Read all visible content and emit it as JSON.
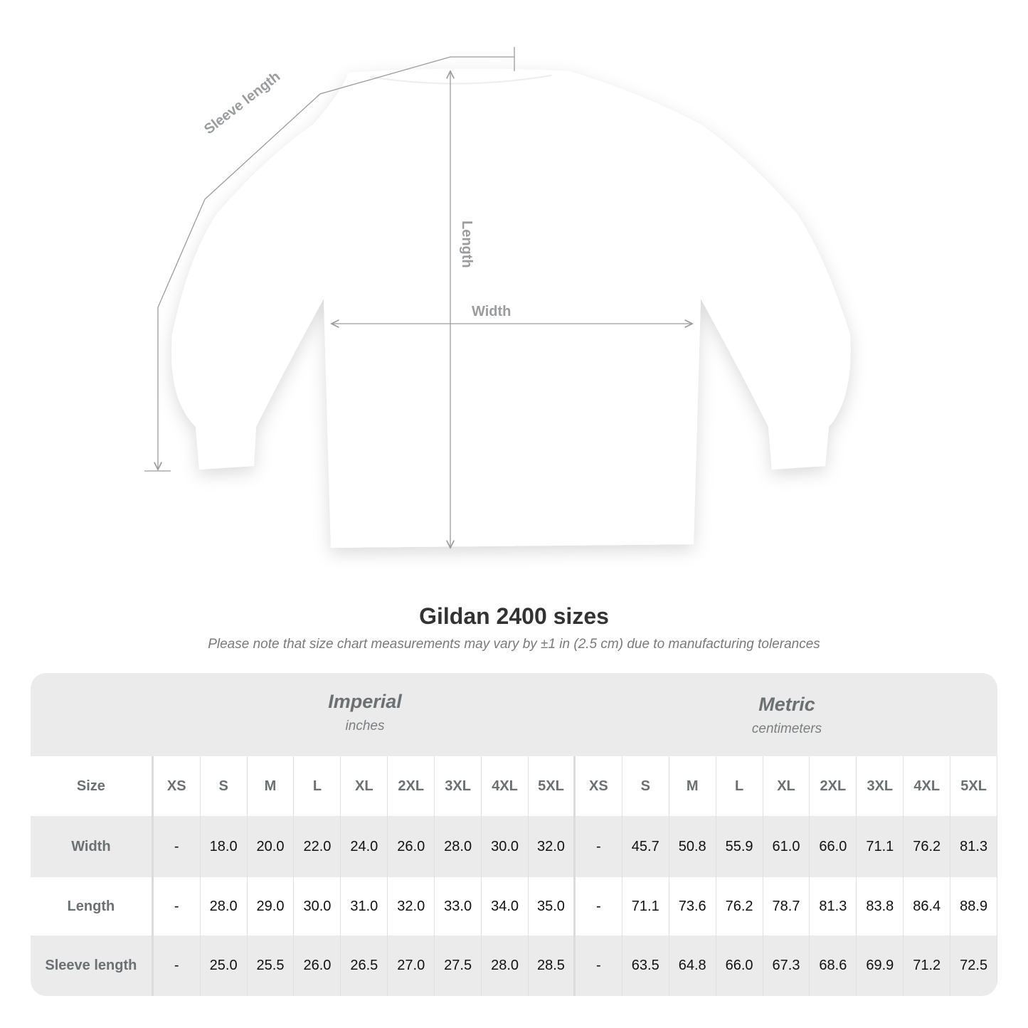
{
  "diagram": {
    "labels": {
      "sleeve": "Sleeve length",
      "length": "Length",
      "width": "Width"
    },
    "colors": {
      "measure_line": "#9a9c9e",
      "shirt": "#ffffff"
    }
  },
  "title": "Gildan 2400 sizes",
  "note": "Please note that size chart measurements may vary by ±1 in (2.5 cm) due to manufacturing tolerances",
  "table": {
    "imperial": {
      "name": "Imperial",
      "unit": "inches"
    },
    "metric": {
      "name": "Metric",
      "unit": "centimeters"
    },
    "size_label": "Size",
    "sizes": [
      "XS",
      "S",
      "M",
      "L",
      "XL",
      "2XL",
      "3XL",
      "4XL",
      "5XL"
    ],
    "rows": [
      {
        "label": "Width",
        "imperial": [
          "-",
          "18.0",
          "20.0",
          "22.0",
          "24.0",
          "26.0",
          "28.0",
          "30.0",
          "32.0"
        ],
        "metric": [
          "-",
          "45.7",
          "50.8",
          "55.9",
          "61.0",
          "66.0",
          "71.1",
          "76.2",
          "81.3"
        ]
      },
      {
        "label": "Length",
        "imperial": [
          "-",
          "28.0",
          "29.0",
          "30.0",
          "31.0",
          "32.0",
          "33.0",
          "34.0",
          "35.0"
        ],
        "metric": [
          "-",
          "71.1",
          "73.6",
          "76.2",
          "78.7",
          "81.3",
          "83.8",
          "86.4",
          "88.9"
        ]
      },
      {
        "label": "Sleeve length",
        "imperial": [
          "-",
          "25.0",
          "25.5",
          "26.0",
          "26.5",
          "27.0",
          "27.5",
          "28.0",
          "28.5"
        ],
        "metric": [
          "-",
          "63.5",
          "64.8",
          "66.0",
          "67.3",
          "68.6",
          "69.9",
          "71.2",
          "72.5"
        ]
      }
    ],
    "colors": {
      "band": "#ebebeb",
      "header_text": "#6b7072",
      "value_text": "#111111"
    }
  }
}
